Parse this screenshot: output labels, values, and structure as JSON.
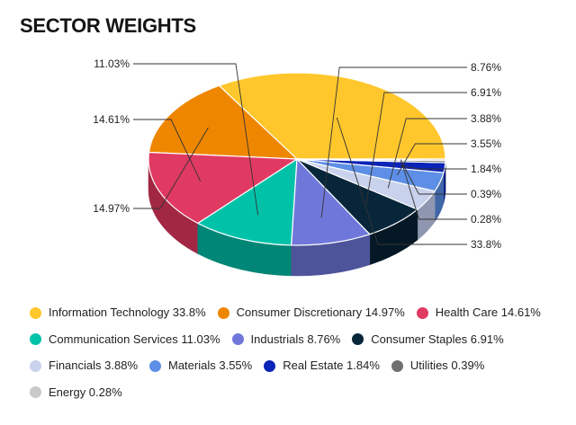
{
  "title": "SECTOR WEIGHTS",
  "chart_data": {
    "type": "pie",
    "style": "3d",
    "legend_position": "bottom",
    "slices": [
      {
        "name": "Information Technology",
        "value": 33.8,
        "label": "33.8%",
        "color": "#FFC72C",
        "side_color": "#B68B0E"
      },
      {
        "name": "Consumer Discretionary",
        "value": 14.97,
        "label": "14.97%",
        "color": "#EE8600",
        "side_color": "#AA5D00"
      },
      {
        "name": "Health Care",
        "value": 14.61,
        "label": "14.61%",
        "color": "#E03A62",
        "side_color": "#A12743"
      },
      {
        "name": "Communication Services",
        "value": 11.03,
        "label": "11.03%",
        "color": "#00C2A9",
        "side_color": "#008676"
      },
      {
        "name": "Industrials",
        "value": 8.76,
        "label": "8.76%",
        "color": "#6F78DA",
        "side_color": "#4D549A"
      },
      {
        "name": "Consumer Staples",
        "value": 6.91,
        "label": "6.91%",
        "color": "#08263A",
        "side_color": "#041826"
      },
      {
        "name": "Financials",
        "value": 3.88,
        "label": "3.88%",
        "color": "#C9D2EC",
        "side_color": "#8F97B0"
      },
      {
        "name": "Materials",
        "value": 3.55,
        "label": "3.55%",
        "color": "#5E8FE6",
        "side_color": "#3F66A6"
      },
      {
        "name": "Real Estate",
        "value": 1.84,
        "label": "1.84%",
        "color": "#0A23B8",
        "side_color": "#061684"
      },
      {
        "name": "Utilities",
        "value": 0.39,
        "label": "0.39%",
        "color": "#707070",
        "side_color": "#4A4A4A"
      },
      {
        "name": "Energy",
        "value": 0.28,
        "label": "0.28%",
        "color": "#C9C9C9",
        "side_color": "#8E8E8E"
      }
    ]
  },
  "legend": [
    "Information Technology 33.8%",
    "Consumer Discretionary 14.97%",
    "Health Care 14.61%",
    "Communication Services 11.03%",
    "Industrials 8.76%",
    "Consumer Staples 6.91%",
    "Financials 3.88%",
    "Materials 3.55%",
    "Real Estate 1.84%",
    "Utilities 0.39%",
    "Energy 0.28%"
  ]
}
